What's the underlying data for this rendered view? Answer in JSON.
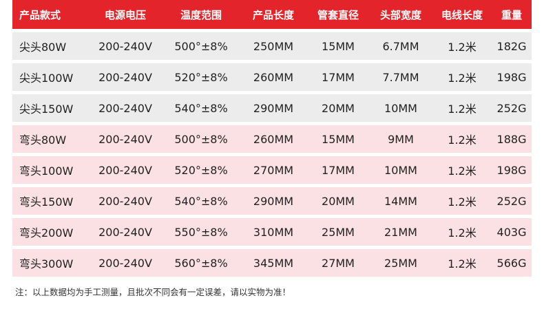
{
  "table": {
    "headers": [
      "产品款式",
      "电源电压",
      "温度范围",
      "产品长度",
      "管套直径",
      "头部宽度",
      "电线长度",
      "重量"
    ],
    "rows": [
      [
        "尖头80W",
        "200-240V",
        "500°±8%",
        "250MM",
        "15MM",
        "6.7MM",
        "1.2米",
        "182G"
      ],
      [
        "尖头100W",
        "200-240V",
        "520°±8%",
        "260MM",
        "17MM",
        "7.7MM",
        "1.2米",
        "198G"
      ],
      [
        "尖头150W",
        "200-240V",
        "540°±8%",
        "290MM",
        "20MM",
        "10MM",
        "1.2米",
        "252G"
      ],
      [
        "弯头80W",
        "200-240V",
        "500°±8%",
        "260MM",
        "15MM",
        "9MM",
        "1.2米",
        "188G"
      ],
      [
        "弯头100W",
        "200-240V",
        "520°±8%",
        "270MM",
        "17MM",
        "10MM",
        "1.2米",
        "198G"
      ],
      [
        "弯头150W",
        "200-240V",
        "540°±8%",
        "290MM",
        "20MM",
        "14MM",
        "1.2米",
        "252G"
      ],
      [
        "弯头200W",
        "200-240V",
        "550°±8%",
        "310MM",
        "25MM",
        "21MM",
        "1.2米",
        "403G"
      ],
      [
        "弯头300W",
        "200-240V",
        "560°±8%",
        "345MM",
        "27MM",
        "25MM",
        "1.2米",
        "566G"
      ]
    ]
  },
  "colors": {
    "header_bg": "#e3242b",
    "row_grey": "#ececec",
    "row_pink": "#fbe1e4"
  },
  "note": "注：以上数据均为手工测量，且批次不同会有一定误差，请以实物为准！"
}
